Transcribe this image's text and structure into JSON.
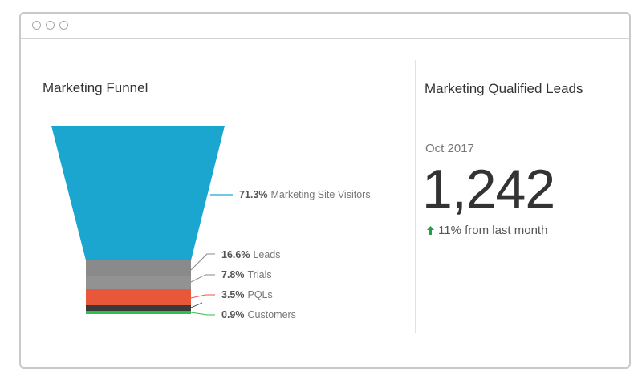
{
  "window": {
    "controls": [
      "window-dot",
      "window-dot",
      "window-dot"
    ]
  },
  "funnel": {
    "title": "Marketing Funnel",
    "segments": [
      {
        "percent": "71.3%",
        "name": "Marketing Site Visitors",
        "color": "#1ba6d0"
      },
      {
        "percent": "16.6%",
        "name": "Leads",
        "color": "#8a8a8a"
      },
      {
        "percent": "7.8%",
        "name": "Trials",
        "color": "#8a8a8a"
      },
      {
        "percent": "3.5%",
        "name": "PQLs",
        "color": "#e8573a"
      },
      {
        "percent": "0.9%",
        "name": "Customers",
        "color": "#2fbf4f"
      }
    ]
  },
  "mql": {
    "title": "Marketing Qualified Leads",
    "period": "Oct 2017",
    "value": "1,242",
    "change": "11% from last month",
    "change_color": "#2a9d4a"
  }
}
